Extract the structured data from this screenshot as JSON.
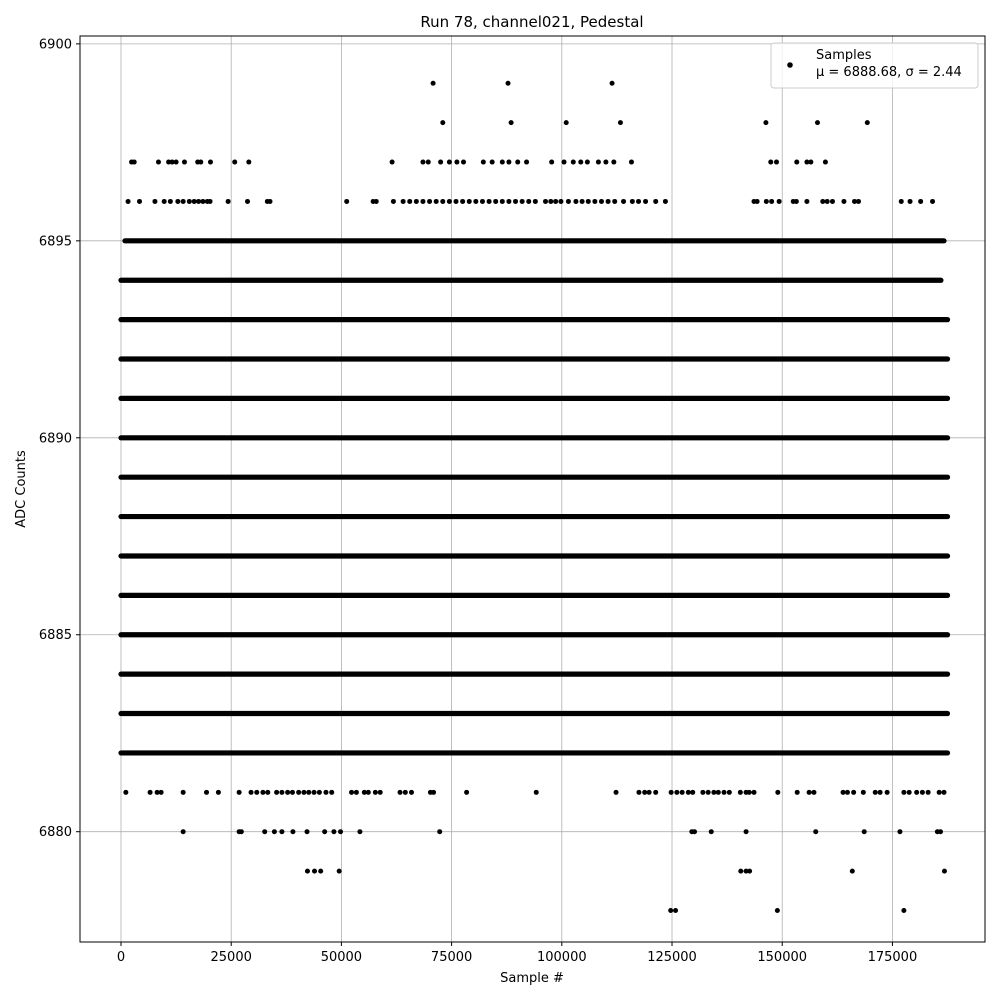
{
  "chart_data": {
    "type": "scatter",
    "title": "Run 78, channel021, Pedestal",
    "xlabel": "Sample #",
    "ylabel": "ADC Counts",
    "xlim": [
      -9300,
      196000
    ],
    "ylim": [
      6877.2,
      6900.2
    ],
    "xticks": [
      0,
      25000,
      50000,
      75000,
      100000,
      125000,
      150000,
      175000
    ],
    "xtick_labels": [
      "0",
      "25000",
      "50000",
      "75000",
      "100000",
      "125000",
      "150000",
      "175000"
    ],
    "yticks": [
      6880,
      6885,
      6890,
      6895,
      6900
    ],
    "ytick_labels": [
      "6880",
      "6885",
      "6890",
      "6895",
      "6900"
    ],
    "grid": true,
    "legend_position": "top-right",
    "marker_color": "#000000",
    "series": [
      {
        "name": "Samples",
        "legend_stats": "μ = 6888.68, σ = 2.44",
        "dense_levels": [
          {
            "y": 6895,
            "x_range": [
              900,
              186700
            ]
          },
          {
            "y": 6894,
            "x_range": [
              0,
              186000
            ]
          },
          {
            "y": 6893,
            "x_range": [
              0,
              187500
            ]
          },
          {
            "y": 6892,
            "x_range": [
              0,
              187500
            ]
          },
          {
            "y": 6891,
            "x_range": [
              0,
              187500
            ]
          },
          {
            "y": 6890,
            "x_range": [
              0,
              187500
            ]
          },
          {
            "y": 6889,
            "x_range": [
              0,
              187500
            ]
          },
          {
            "y": 6888,
            "x_range": [
              0,
              187500
            ]
          },
          {
            "y": 6887,
            "x_range": [
              0,
              187500
            ]
          },
          {
            "y": 6886,
            "x_range": [
              0,
              187500
            ]
          },
          {
            "y": 6885,
            "x_range": [
              0,
              187500
            ]
          },
          {
            "y": 6884,
            "x_range": [
              0,
              187500
            ]
          },
          {
            "y": 6883,
            "x_range": [
              0,
              187500
            ]
          },
          {
            "y": 6882,
            "x_range": [
              0,
              187500
            ]
          }
        ],
        "sparse_points": [
          [
            70800,
            6899
          ],
          [
            87800,
            6899
          ],
          [
            111400,
            6899
          ],
          [
            73000,
            6898
          ],
          [
            88500,
            6898
          ],
          [
            101000,
            6898
          ],
          [
            113300,
            6898
          ],
          [
            146300,
            6898
          ],
          [
            158000,
            6898
          ],
          [
            169300,
            6898
          ],
          [
            2400,
            6897
          ],
          [
            3000,
            6897
          ],
          [
            8500,
            6897
          ],
          [
            10800,
            6897
          ],
          [
            11600,
            6897
          ],
          [
            12500,
            6897
          ],
          [
            14400,
            6897
          ],
          [
            17400,
            6897
          ],
          [
            18100,
            6897
          ],
          [
            20300,
            6897
          ],
          [
            25800,
            6897
          ],
          [
            29000,
            6897
          ],
          [
            61500,
            6897
          ],
          [
            68500,
            6897
          ],
          [
            69700,
            6897
          ],
          [
            72500,
            6897
          ],
          [
            74500,
            6897
          ],
          [
            76200,
            6897
          ],
          [
            77700,
            6897
          ],
          [
            82200,
            6897
          ],
          [
            84200,
            6897
          ],
          [
            86500,
            6897
          ],
          [
            88000,
            6897
          ],
          [
            90000,
            6897
          ],
          [
            92000,
            6897
          ],
          [
            97700,
            6897
          ],
          [
            100500,
            6897
          ],
          [
            102600,
            6897
          ],
          [
            104300,
            6897
          ],
          [
            105800,
            6897
          ],
          [
            108300,
            6897
          ],
          [
            110000,
            6897
          ],
          [
            111800,
            6897
          ],
          [
            115800,
            6897
          ],
          [
            147400,
            6897
          ],
          [
            148700,
            6897
          ],
          [
            153300,
            6897
          ],
          [
            155600,
            6897
          ],
          [
            156500,
            6897
          ],
          [
            159800,
            6897
          ],
          [
            1600,
            6896
          ],
          [
            4200,
            6896
          ],
          [
            7700,
            6896
          ],
          [
            9800,
            6896
          ],
          [
            11200,
            6896
          ],
          [
            12900,
            6896
          ],
          [
            14100,
            6896
          ],
          [
            15500,
            6896
          ],
          [
            16600,
            6896
          ],
          [
            17600,
            6896
          ],
          [
            18600,
            6896
          ],
          [
            19600,
            6896
          ],
          [
            20200,
            6896
          ],
          [
            24300,
            6896
          ],
          [
            28700,
            6896
          ],
          [
            33200,
            6896
          ],
          [
            33800,
            6896
          ],
          [
            51200,
            6896
          ],
          [
            57200,
            6896
          ],
          [
            57900,
            6896
          ],
          [
            61800,
            6896
          ],
          [
            64000,
            6896
          ],
          [
            65500,
            6896
          ],
          [
            67000,
            6896
          ],
          [
            68500,
            6896
          ],
          [
            70000,
            6896
          ],
          [
            71500,
            6896
          ],
          [
            73000,
            6896
          ],
          [
            74500,
            6896
          ],
          [
            76000,
            6896
          ],
          [
            77500,
            6896
          ],
          [
            79000,
            6896
          ],
          [
            80500,
            6896
          ],
          [
            82000,
            6896
          ],
          [
            83500,
            6896
          ],
          [
            85000,
            6896
          ],
          [
            86500,
            6896
          ],
          [
            88000,
            6896
          ],
          [
            89500,
            6896
          ],
          [
            91000,
            6896
          ],
          [
            92500,
            6896
          ],
          [
            94000,
            6896
          ],
          [
            96300,
            6896
          ],
          [
            97500,
            6896
          ],
          [
            98600,
            6896
          ],
          [
            99800,
            6896
          ],
          [
            101500,
            6896
          ],
          [
            103200,
            6896
          ],
          [
            104600,
            6896
          ],
          [
            106000,
            6896
          ],
          [
            107500,
            6896
          ],
          [
            109000,
            6896
          ],
          [
            110500,
            6896
          ],
          [
            112000,
            6896
          ],
          [
            114000,
            6896
          ],
          [
            116000,
            6896
          ],
          [
            117400,
            6896
          ],
          [
            119000,
            6896
          ],
          [
            121300,
            6896
          ],
          [
            123500,
            6896
          ],
          [
            143600,
            6896
          ],
          [
            144300,
            6896
          ],
          [
            146400,
            6896
          ],
          [
            147600,
            6896
          ],
          [
            149300,
            6896
          ],
          [
            152500,
            6896
          ],
          [
            153200,
            6896
          ],
          [
            155600,
            6896
          ],
          [
            159200,
            6896
          ],
          [
            160200,
            6896
          ],
          [
            161400,
            6896
          ],
          [
            164000,
            6896
          ],
          [
            166400,
            6896
          ],
          [
            167300,
            6896
          ],
          [
            177000,
            6896
          ],
          [
            179000,
            6896
          ],
          [
            181400,
            6896
          ],
          [
            184100,
            6896
          ],
          [
            1100,
            6881
          ],
          [
            6600,
            6881
          ],
          [
            8200,
            6881
          ],
          [
            9100,
            6881
          ],
          [
            14100,
            6881
          ],
          [
            19400,
            6881
          ],
          [
            22100,
            6881
          ],
          [
            26800,
            6881
          ],
          [
            29500,
            6881
          ],
          [
            30800,
            6881
          ],
          [
            32200,
            6881
          ],
          [
            33300,
            6881
          ],
          [
            35300,
            6881
          ],
          [
            36500,
            6881
          ],
          [
            37800,
            6881
          ],
          [
            38900,
            6881
          ],
          [
            40300,
            6881
          ],
          [
            41500,
            6881
          ],
          [
            42600,
            6881
          ],
          [
            43800,
            6881
          ],
          [
            45000,
            6881
          ],
          [
            46500,
            6881
          ],
          [
            47800,
            6881
          ],
          [
            52300,
            6881
          ],
          [
            53400,
            6881
          ],
          [
            55200,
            6881
          ],
          [
            56100,
            6881
          ],
          [
            57700,
            6881
          ],
          [
            58800,
            6881
          ],
          [
            63300,
            6881
          ],
          [
            64500,
            6881
          ],
          [
            65900,
            6881
          ],
          [
            70200,
            6881
          ],
          [
            70900,
            6881
          ],
          [
            78400,
            6881
          ],
          [
            94200,
            6881
          ],
          [
            112300,
            6881
          ],
          [
            117500,
            6881
          ],
          [
            118800,
            6881
          ],
          [
            119800,
            6881
          ],
          [
            121300,
            6881
          ],
          [
            124800,
            6881
          ],
          [
            126100,
            6881
          ],
          [
            127300,
            6881
          ],
          [
            128700,
            6881
          ],
          [
            129700,
            6881
          ],
          [
            132000,
            6881
          ],
          [
            133200,
            6881
          ],
          [
            134500,
            6881
          ],
          [
            135500,
            6881
          ],
          [
            136800,
            6881
          ],
          [
            138000,
            6881
          ],
          [
            140500,
            6881
          ],
          [
            141800,
            6881
          ],
          [
            142500,
            6881
          ],
          [
            143600,
            6881
          ],
          [
            149000,
            6881
          ],
          [
            153400,
            6881
          ],
          [
            156100,
            6881
          ],
          [
            157200,
            6881
          ],
          [
            163800,
            6881
          ],
          [
            164800,
            6881
          ],
          [
            166200,
            6881
          ],
          [
            168400,
            6881
          ],
          [
            171100,
            6881
          ],
          [
            172200,
            6881
          ],
          [
            173800,
            6881
          ],
          [
            177600,
            6881
          ],
          [
            178800,
            6881
          ],
          [
            180500,
            6881
          ],
          [
            181800,
            6881
          ],
          [
            183100,
            6881
          ],
          [
            185600,
            6881
          ],
          [
            186700,
            6881
          ],
          [
            14100,
            6880
          ],
          [
            26800,
            6880
          ],
          [
            27300,
            6880
          ],
          [
            32600,
            6880
          ],
          [
            34800,
            6880
          ],
          [
            36500,
            6880
          ],
          [
            39000,
            6880
          ],
          [
            42200,
            6880
          ],
          [
            46200,
            6880
          ],
          [
            48300,
            6880
          ],
          [
            49800,
            6880
          ],
          [
            54200,
            6880
          ],
          [
            72300,
            6880
          ],
          [
            129500,
            6880
          ],
          [
            130100,
            6880
          ],
          [
            133900,
            6880
          ],
          [
            141800,
            6880
          ],
          [
            157600,
            6880
          ],
          [
            168600,
            6880
          ],
          [
            176700,
            6880
          ],
          [
            185200,
            6880
          ],
          [
            185900,
            6880
          ],
          [
            42300,
            6879
          ],
          [
            43900,
            6879
          ],
          [
            45300,
            6879
          ],
          [
            49500,
            6879
          ],
          [
            140600,
            6879
          ],
          [
            141800,
            6879
          ],
          [
            142600,
            6879
          ],
          [
            165900,
            6879
          ],
          [
            186800,
            6879
          ],
          [
            124700,
            6878
          ],
          [
            125800,
            6878
          ],
          [
            148900,
            6878
          ],
          [
            177600,
            6878
          ]
        ]
      }
    ]
  }
}
